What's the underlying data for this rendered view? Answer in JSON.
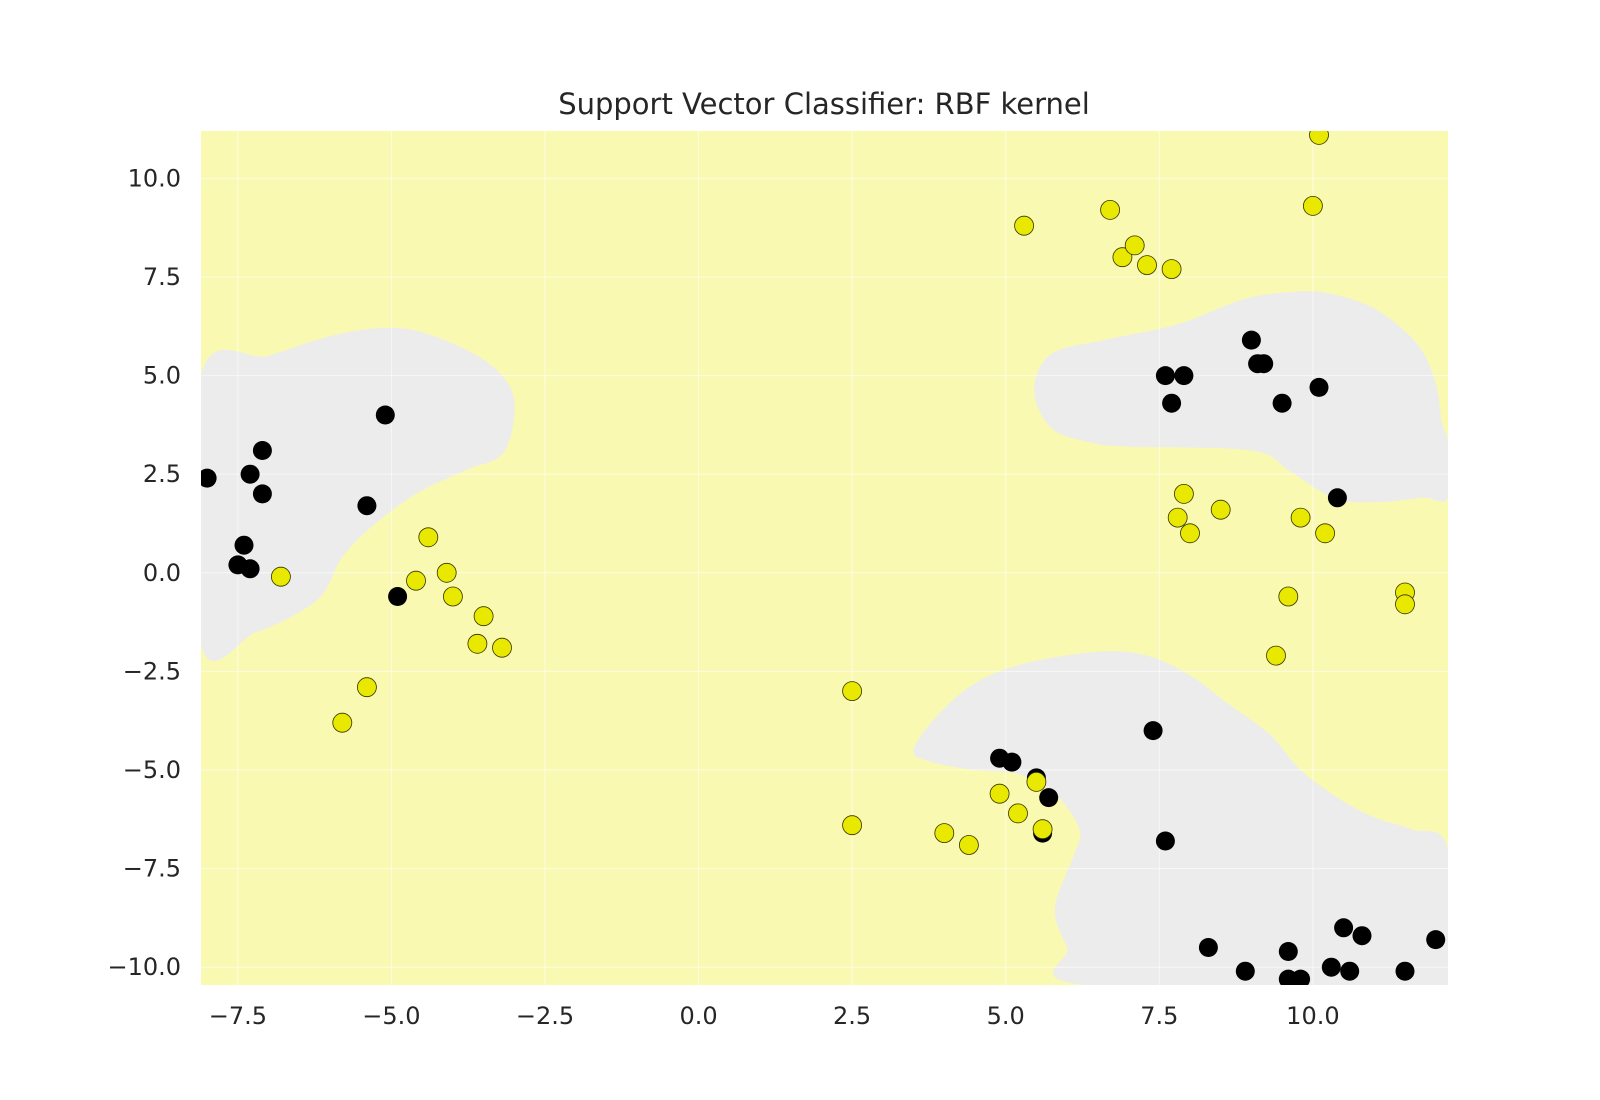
{
  "chart_data": {
    "type": "scatter",
    "title": "Support Vector Classifier: RBF kernel",
    "xlabel": "",
    "ylabel": "",
    "xlim": [
      -8.1,
      12.2
    ],
    "ylim": [
      -10.45,
      11.2
    ],
    "xticks": [
      -7.5,
      -5.0,
      -2.5,
      0.0,
      2.5,
      5.0,
      7.5,
      10.0
    ],
    "xtick_labels": [
      "−7.5",
      "−5.0",
      "−2.5",
      "0.0",
      "2.5",
      "5.0",
      "7.5",
      "10.0"
    ],
    "yticks": [
      10.0,
      7.5,
      5.0,
      2.5,
      0.0,
      -2.5,
      -5.0,
      -7.5,
      -10.0
    ],
    "ytick_labels": [
      "10.0",
      "7.5",
      "5.0",
      "2.5",
      "0.0",
      "−2.5",
      "−5.0",
      "−7.5",
      "−10.0"
    ],
    "grid": true,
    "colors": {
      "background_region": "#f9f9b2",
      "decision_region": "#ececec",
      "grid": "#ffffff",
      "class_0": "#000000",
      "class_1": "#e8e800"
    },
    "decision_regions": [
      {
        "class": 0,
        "boundary": [
          [
            -8.1,
            5.0
          ],
          [
            -7.0,
            5.5
          ],
          [
            -6.0,
            6.0
          ],
          [
            -5.2,
            6.2
          ],
          [
            -4.5,
            6.1
          ],
          [
            -3.6,
            5.5
          ],
          [
            -3.1,
            4.8
          ],
          [
            -3.0,
            4.0
          ],
          [
            -3.2,
            3.0
          ],
          [
            -3.8,
            2.6
          ],
          [
            -4.6,
            2.0
          ],
          [
            -5.3,
            1.2
          ],
          [
            -5.8,
            0.4
          ],
          [
            -6.1,
            -0.5
          ],
          [
            -6.5,
            -1.0
          ],
          [
            -7.2,
            -1.5
          ],
          [
            -8.1,
            -1.8
          ]
        ]
      },
      {
        "class": 0,
        "boundary": [
          [
            5.5,
            5.0
          ],
          [
            5.8,
            5.6
          ],
          [
            6.6,
            5.9
          ],
          [
            7.8,
            6.3
          ],
          [
            8.8,
            6.9
          ],
          [
            9.5,
            7.1
          ],
          [
            10.2,
            7.1
          ],
          [
            11.0,
            6.7
          ],
          [
            11.7,
            5.8
          ],
          [
            12.0,
            4.8
          ],
          [
            12.1,
            3.8
          ],
          [
            12.2,
            3.3
          ],
          [
            12.2,
            1.9
          ],
          [
            11.8,
            1.9
          ],
          [
            11.2,
            1.8
          ],
          [
            10.6,
            1.8
          ],
          [
            10.2,
            2.0
          ],
          [
            9.6,
            2.6
          ],
          [
            9.0,
            3.1
          ],
          [
            7.0,
            3.2
          ],
          [
            6.4,
            3.3
          ],
          [
            5.8,
            3.6
          ],
          [
            5.5,
            4.3
          ]
        ]
      },
      {
        "class": 0,
        "boundary": [
          [
            3.5,
            -4.5
          ],
          [
            3.9,
            -3.6
          ],
          [
            4.5,
            -2.8
          ],
          [
            5.3,
            -2.3
          ],
          [
            6.5,
            -2.0
          ],
          [
            7.3,
            -2.1
          ],
          [
            8.0,
            -2.6
          ],
          [
            8.6,
            -3.3
          ],
          [
            9.3,
            -4.1
          ],
          [
            9.8,
            -5.0
          ],
          [
            10.4,
            -5.7
          ],
          [
            11.0,
            -6.2
          ],
          [
            11.6,
            -6.5
          ],
          [
            12.2,
            -7.0
          ],
          [
            12.2,
            -10.45
          ],
          [
            6.3,
            -10.45
          ],
          [
            6.0,
            -9.5
          ],
          [
            5.8,
            -8.5
          ],
          [
            6.1,
            -7.2
          ],
          [
            6.2,
            -6.5
          ],
          [
            5.8,
            -5.6
          ],
          [
            5.2,
            -5.1
          ],
          [
            4.5,
            -5.0
          ],
          [
            3.8,
            -4.8
          ]
        ]
      }
    ],
    "series": [
      {
        "class": 0,
        "x": [
          -8.0,
          -7.1,
          -7.3,
          -7.1,
          -7.4,
          -7.5,
          -7.3,
          -5.1,
          -5.4,
          -4.9,
          7.6,
          7.7,
          7.9,
          9.0,
          9.1,
          9.2,
          9.5,
          10.1,
          10.4,
          7.4,
          7.6,
          4.9,
          5.1,
          5.5,
          5.7,
          5.6,
          8.3,
          8.9,
          9.6,
          9.6,
          9.8,
          10.3,
          10.6,
          10.5,
          10.8,
          11.5,
          12.0
        ],
        "y": [
          2.4,
          3.1,
          2.5,
          2.0,
          0.7,
          0.2,
          0.1,
          4.0,
          1.7,
          -0.6,
          5.0,
          4.3,
          5.0,
          5.9,
          5.3,
          5.3,
          4.3,
          4.7,
          1.9,
          -4.0,
          -6.8,
          -4.7,
          -4.8,
          -5.2,
          -5.7,
          -6.6,
          -9.5,
          -10.1,
          -9.6,
          -10.3,
          -10.3,
          -10.0,
          -10.1,
          -9.0,
          -9.2,
          -10.1,
          -9.3
        ]
      },
      {
        "class": 1,
        "x": [
          -6.8,
          -4.4,
          -4.6,
          -4.1,
          -4.0,
          -3.5,
          -3.6,
          -3.2,
          -5.4,
          -5.8,
          5.3,
          6.7,
          6.9,
          7.1,
          7.3,
          7.7,
          10.1,
          10.0,
          7.9,
          7.8,
          8.0,
          8.5,
          9.8,
          10.2,
          11.5,
          11.5,
          9.6,
          9.4,
          2.5,
          2.5,
          4.0,
          4.4,
          4.9,
          5.2,
          5.5,
          5.6
        ],
        "y": [
          -0.1,
          0.9,
          -0.2,
          0.0,
          -0.6,
          -1.1,
          -1.8,
          -1.9,
          -2.9,
          -3.8,
          8.8,
          9.2,
          8.0,
          8.3,
          7.8,
          7.7,
          11.1,
          9.3,
          2.0,
          1.4,
          1.0,
          1.6,
          1.4,
          1.0,
          -0.5,
          -0.8,
          -0.6,
          -2.1,
          -3.0,
          -6.4,
          -6.6,
          -6.9,
          -5.6,
          -6.1,
          -5.3,
          -6.5
        ]
      }
    ]
  }
}
